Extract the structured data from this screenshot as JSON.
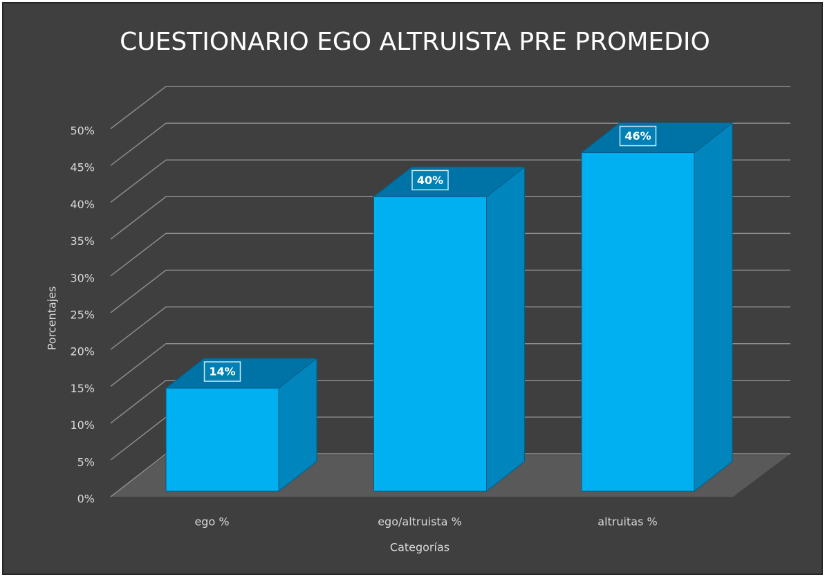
{
  "chart_data": {
    "type": "bar3d",
    "title": "CUESTIONARIO EGO ALTRUISTA PRE PROMEDIO",
    "x_label": "Categorías",
    "y_label": "Porcentajes",
    "categories": [
      "ego %",
      "ego/altruista %",
      "altruitas %"
    ],
    "values": [
      14,
      40,
      46
    ],
    "value_labels": [
      "14%",
      "40%",
      "46%"
    ],
    "color": "#00b0f0",
    "ylim": [
      0,
      50
    ],
    "yticks": [
      {
        "value": 0,
        "label": "0%"
      },
      {
        "value": 5,
        "label": "5%"
      },
      {
        "value": 10,
        "label": "10%"
      },
      {
        "value": 15,
        "label": "15%"
      },
      {
        "value": 20,
        "label": "20%"
      },
      {
        "value": 25,
        "label": "25%"
      },
      {
        "value": 30,
        "label": "30%"
      },
      {
        "value": 35,
        "label": "35%"
      },
      {
        "value": 40,
        "label": "40%"
      },
      {
        "value": 45,
        "label": "45%"
      },
      {
        "value": 50,
        "label": "50%"
      }
    ],
    "grid": true
  }
}
